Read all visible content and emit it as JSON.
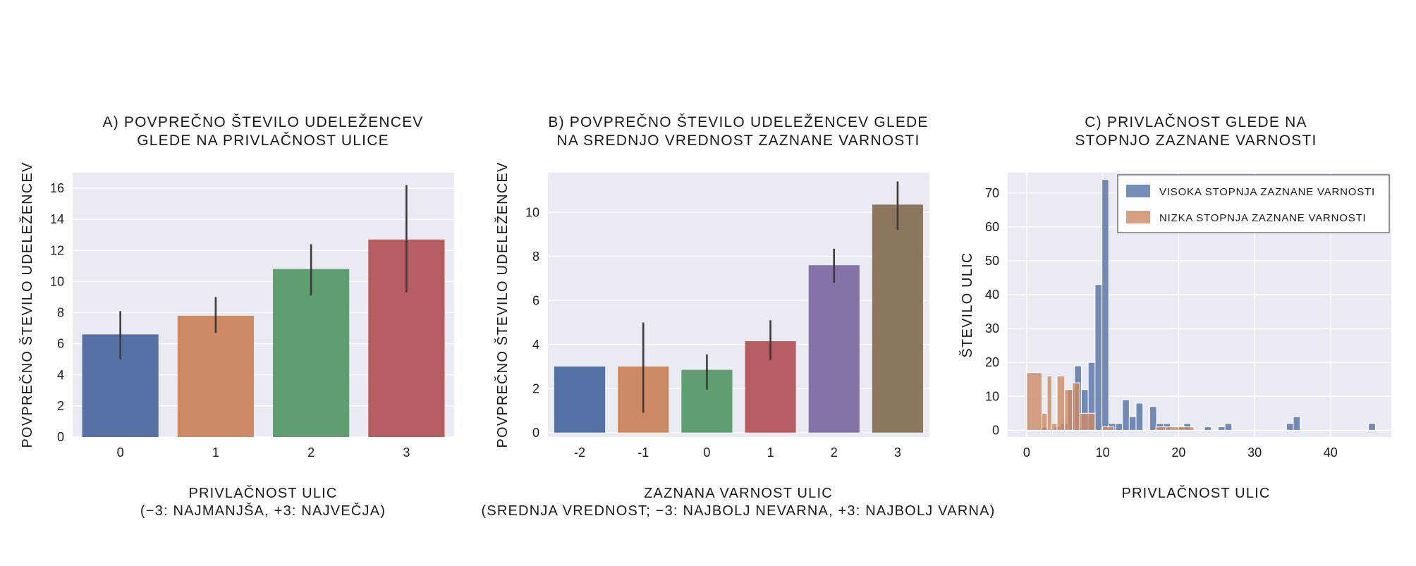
{
  "chart_data": [
    {
      "type": "bar",
      "title": [
        "A) POVPREČNO ŠTEVILO UDELEŽENCEV",
        "GLEDE NA PRIVLAČNOST ULICE"
      ],
      "xlabel": [
        "PRIVLAČNOST ULIC",
        "(−3: NAJMANJŠA, +3: NAJVEČJA)"
      ],
      "ylabel": "POVPREČNO ŠTEVILO UDELEŽENCEV",
      "categories": [
        "0",
        "1",
        "2",
        "3"
      ],
      "values": [
        6.6,
        7.8,
        10.8,
        12.7
      ],
      "error_low": [
        5.0,
        6.7,
        9.1,
        9.3
      ],
      "error_high": [
        8.1,
        9.0,
        12.4,
        16.2
      ],
      "colors": [
        "#5471a5",
        "#cc8963",
        "#5f9e6e",
        "#b55d60"
      ],
      "ylim": [
        0,
        17
      ],
      "yticks": [
        0,
        2,
        4,
        6,
        8,
        10,
        12,
        14,
        16
      ],
      "grid": true
    },
    {
      "type": "bar",
      "title": [
        "B) POVPREČNO ŠTEVILO UDELEŽENCEV GLEDE",
        "NA SREDNJO VREDNOST ZAZNANE VARNOSTI"
      ],
      "xlabel": [
        "ZAZNANA VARNOST ULIC",
        "(SREDNJA VREDNOST; −3: NAJBOLJ NEVARNA, +3: NAJBOLJ VARNA)"
      ],
      "ylabel": "POVPREČNO ŠTEVILO UDELEŽENCEV",
      "categories": [
        "-2",
        "-1",
        "0",
        "1",
        "2",
        "3"
      ],
      "values": [
        3.0,
        3.0,
        2.85,
        4.15,
        7.6,
        10.35
      ],
      "error_low": [
        3.0,
        0.9,
        1.95,
        3.3,
        6.8,
        9.2
      ],
      "error_high": [
        3.0,
        5.0,
        3.55,
        5.1,
        8.35,
        11.4
      ],
      "colors": [
        "#5471a5",
        "#cc8963",
        "#5f9e6e",
        "#b55d60",
        "#8473a8",
        "#8c7660"
      ],
      "ylim": [
        -0.2,
        11.8
      ],
      "yticks": [
        0,
        2,
        4,
        6,
        8,
        10
      ],
      "grid": true
    },
    {
      "type": "histogram",
      "title": [
        "C) PRIVLAČNOST GLEDE NA",
        "STOPNJO ZAZNANE VARNOSTI"
      ],
      "xlabel": [
        "PRIVLAČNOST ULIC"
      ],
      "ylabel": "ŠTEVILO ULIC",
      "xlim": [
        -2.5,
        48
      ],
      "ylim": [
        -2,
        76
      ],
      "xticks": [
        0,
        10,
        20,
        30,
        40
      ],
      "yticks": [
        0,
        10,
        20,
        30,
        40,
        50,
        60,
        70
      ],
      "legend_position": "top-right",
      "grid": true,
      "series": [
        {
          "name": "VISOKA STOPNJA ZAZNANE VARNOSTI",
          "color": "#5471a5",
          "bins": [
            [
              0,
              0.9,
              0
            ],
            [
              0.9,
              1.8,
              0
            ],
            [
              1.8,
              2.7,
              1
            ],
            [
              2.7,
              3.6,
              0
            ],
            [
              3.6,
              4.5,
              1
            ],
            [
              4.5,
              5.4,
              2
            ],
            [
              5.4,
              6.3,
              12
            ],
            [
              6.3,
              7.2,
              19
            ],
            [
              7.2,
              8.1,
              12
            ],
            [
              8.1,
              9.0,
              20
            ],
            [
              9.0,
              9.9,
              43
            ],
            [
              9.9,
              10.8,
              74
            ],
            [
              10.8,
              11.7,
              2
            ],
            [
              11.7,
              12.6,
              2
            ],
            [
              12.6,
              13.5,
              9
            ],
            [
              13.5,
              14.4,
              4
            ],
            [
              14.4,
              15.3,
              8
            ],
            [
              15.3,
              16.2,
              0
            ],
            [
              16.2,
              17.1,
              7
            ],
            [
              17.1,
              18.0,
              2
            ],
            [
              18.0,
              18.9,
              2
            ],
            [
              18.9,
              19.8,
              0
            ],
            [
              19.8,
              20.7,
              1
            ],
            [
              20.7,
              21.6,
              2
            ],
            [
              23.4,
              24.3,
              1
            ],
            [
              25.2,
              26.1,
              1
            ],
            [
              26.1,
              27.0,
              2
            ],
            [
              34.2,
              35.1,
              2
            ],
            [
              35.1,
              36.0,
              4
            ],
            [
              45.0,
              45.9,
              2
            ]
          ]
        },
        {
          "name": "NIZKA STOPNJA ZAZNANE VARNOSTI",
          "color": "#cc8963",
          "bins": [
            [
              0,
              2,
              17
            ],
            [
              2,
              2.7,
              5
            ],
            [
              2.7,
              3.3,
              16
            ],
            [
              3.3,
              4,
              2
            ],
            [
              4,
              5,
              16
            ],
            [
              5,
              6,
              12
            ],
            [
              6,
              7,
              14
            ],
            [
              7,
              9,
              5
            ],
            [
              9,
              10,
              0
            ],
            [
              10,
              11.5,
              1
            ],
            [
              17,
              18.3,
              1
            ],
            [
              18.3,
              20,
              1
            ],
            [
              20,
              22,
              1
            ]
          ]
        }
      ]
    }
  ]
}
